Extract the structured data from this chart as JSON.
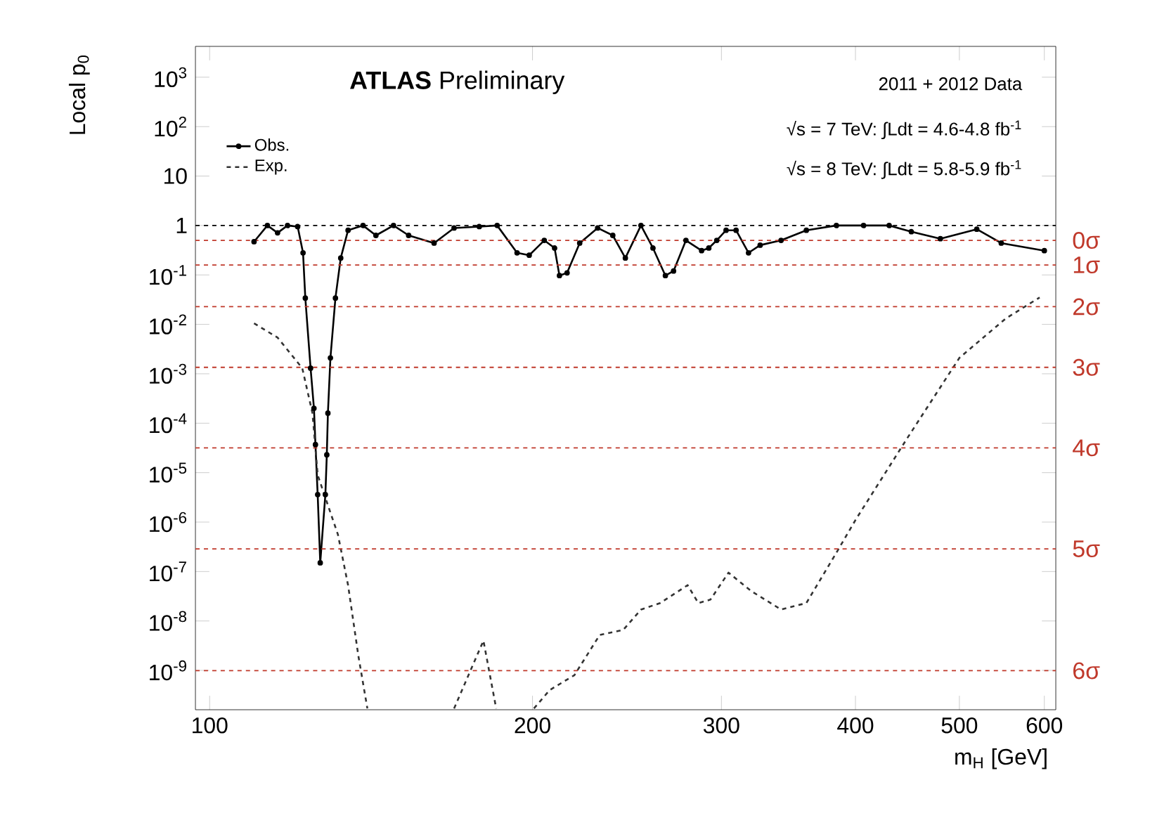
{
  "chart_data": {
    "type": "line",
    "xlabel": "m$_{H}$ [GeV]",
    "ylabel": "Local p$_{0}$",
    "log": "xy",
    "grid": false,
    "legend": "top left",
    "xlim": [
      97,
      615
    ],
    "ylim": [
      1.6e-10,
      4200
    ],
    "xticks": [
      100,
      200,
      300,
      400,
      500,
      600
    ],
    "yticks": [
      {
        "value": 1000,
        "label": "10$^{3}$"
      },
      {
        "value": 100,
        "label": "10$^{2}$"
      },
      {
        "value": 10,
        "label": "10"
      },
      {
        "value": 1,
        "label": "1"
      },
      {
        "value": 0.1,
        "label": "10$^{-1}$"
      },
      {
        "value": 0.01,
        "label": "10$^{-2}$"
      },
      {
        "value": 0.001,
        "label": "10$^{-3}$"
      },
      {
        "value": 0.0001,
        "label": "10$^{-4}$"
      },
      {
        "value": 1e-05,
        "label": "10$^{-5}$"
      },
      {
        "value": 1e-06,
        "label": "10$^{-6}$"
      },
      {
        "value": 1e-07,
        "label": "10$^{-7}$"
      },
      {
        "value": 1e-08,
        "label": "10$^{-8}$"
      },
      {
        "value": 1e-09,
        "label": "10$^{-9}$"
      }
    ],
    "series": [
      {
        "name": "Obs.",
        "color": "#000000",
        "marker": "circle",
        "line_style": "solid",
        "x": [
          110,
          113.2,
          115.7,
          118.2,
          120.8,
          122.2,
          122.8,
          124.2,
          125.1,
          125.5,
          126.1,
          126.8,
          128.2,
          128.6,
          128.9,
          129.6,
          131,
          132.5,
          134.6,
          139,
          142.9,
          148.4,
          153.3,
          161.9,
          169,
          178.4,
          185.4,
          193.5,
          198.6,
          205.1,
          209.7,
          211.9,
          215.4,
          221.3,
          230,
          237.6,
          244.1,
          252.4,
          259,
          266,
          270.7,
          278,
          287.5,
          292,
          297,
          303,
          309.6,
          318,
          326,
          341,
          360,
          384,
          407,
          430,
          451,
          480,
          519,
          547,
          600
        ],
        "values": [
          0.47,
          1.0,
          0.71,
          1.0,
          0.95,
          0.28,
          0.034,
          0.0013,
          0.0002,
          3.7e-05,
          3.6e-06,
          1.5e-07,
          3.6e-06,
          2.3e-05,
          0.00016,
          0.0021,
          0.034,
          0.22,
          0.8,
          1.0,
          0.63,
          1.0,
          0.63,
          0.44,
          0.89,
          0.95,
          1.0,
          0.28,
          0.25,
          0.5,
          0.35,
          0.097,
          0.11,
          0.44,
          0.89,
          0.63,
          0.22,
          1.0,
          0.35,
          0.097,
          0.12,
          0.5,
          0.31,
          0.35,
          0.5,
          0.8,
          0.8,
          0.28,
          0.4,
          0.5,
          0.8,
          1.0,
          1.0,
          1.0,
          0.75,
          0.54,
          0.84,
          0.44,
          0.31
        ]
      },
      {
        "name": "Exp.",
        "color": "#333333",
        "marker": "none",
        "line_style": "dashed",
        "x": [
          110,
          115.7,
          122,
          124.7,
          126.1,
          128.9,
          131.7,
          134.6,
          137.6,
          140.3,
          155,
          169,
          180,
          185,
          192,
          200.6,
          207.5,
          218.8,
          231,
          243,
          252.4,
          263,
          279,
          285.5,
          293,
          304.6,
          320,
          341,
          360,
          384,
          400,
          446,
          500,
          552,
          594
        ],
        "values": [
          0.0105,
          0.0054,
          0.0013,
          0.00016,
          9e-06,
          2.2e-06,
          5.6e-07,
          5.3e-08,
          2e-09,
          1.7e-10,
          null,
          1.7e-10,
          4e-09,
          1.7e-10,
          null,
          1.7e-10,
          4e-10,
          8e-10,
          5.2e-09,
          6.6e-09,
          1.7e-08,
          2.3e-08,
          5.3e-08,
          2.3e-08,
          2.7e-08,
          9.5e-08,
          4e-08,
          1.7e-08,
          2.3e-08,
          2.4e-07,
          1.1e-06,
          4.6e-05,
          0.0021,
          0.013,
          0.035
        ]
      }
    ],
    "ref_lines": [
      {
        "axis": "y",
        "value": 1,
        "label": null,
        "color": "#000000",
        "line_style": "dashed"
      },
      {
        "axis": "y",
        "value": 0.5,
        "label": "0σ",
        "color": "#c0392b",
        "line_style": "dashed"
      },
      {
        "axis": "y",
        "value": 0.1587,
        "label": "1σ",
        "color": "#c0392b",
        "line_style": "dashed"
      },
      {
        "axis": "y",
        "value": 0.02275,
        "label": "2σ",
        "color": "#c0392b",
        "line_style": "dashed"
      },
      {
        "axis": "y",
        "value": 0.00135,
        "label": "3σ",
        "color": "#c0392b",
        "line_style": "dashed"
      },
      {
        "axis": "y",
        "value": 3.17e-05,
        "label": "4σ",
        "color": "#c0392b",
        "line_style": "dashed"
      },
      {
        "axis": "y",
        "value": 2.87e-07,
        "label": "5σ",
        "color": "#c0392b",
        "line_style": "dashed"
      },
      {
        "axis": "y",
        "value": 9.87e-10,
        "label": "6σ",
        "color": "#c0392b",
        "line_style": "dashed"
      }
    ],
    "annotations": [
      "**ATLAS** Preliminary",
      "2011 + 2012 Data",
      "√s = 7 TeV: ∫Ldt = 4.6-4.8 fb$^{-1}$",
      "√s = 8 TeV: ∫Ldt = 5.8-5.9 fb$^{-1}$"
    ]
  }
}
